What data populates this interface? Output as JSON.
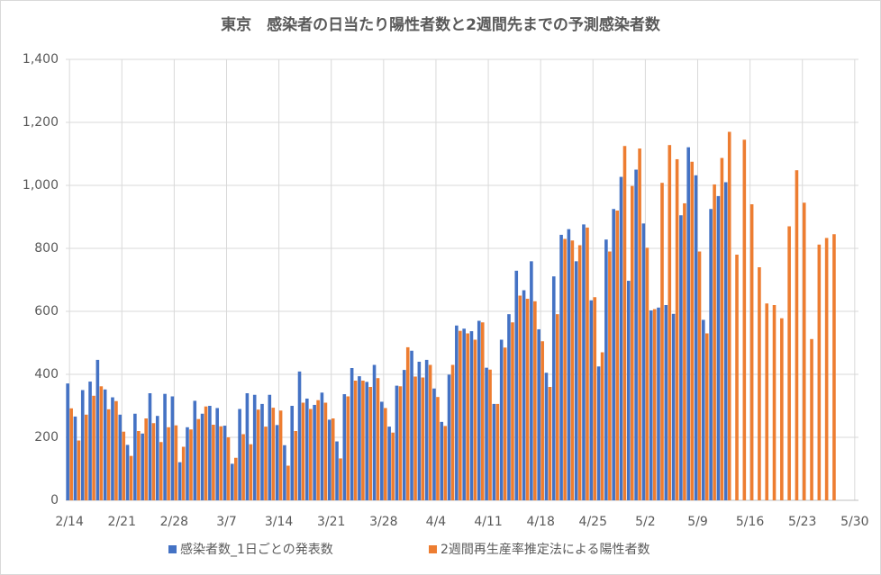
{
  "chart_data": {
    "type": "bar",
    "title": "東京　感染者の日当たり陽性者数と2週間先までの予測感染者数",
    "categories": [
      "2/14",
      null,
      null,
      null,
      null,
      null,
      null,
      "2/21",
      null,
      null,
      null,
      null,
      null,
      null,
      "2/28",
      null,
      null,
      null,
      null,
      null,
      null,
      "3/7",
      null,
      null,
      null,
      null,
      null,
      null,
      "3/14",
      null,
      null,
      null,
      null,
      null,
      null,
      "3/21",
      null,
      null,
      null,
      null,
      null,
      null,
      "3/28",
      null,
      null,
      null,
      null,
      null,
      null,
      "4/4",
      null,
      null,
      null,
      null,
      null,
      null,
      "4/11",
      null,
      null,
      null,
      null,
      null,
      null,
      "4/18",
      null,
      null,
      null,
      null,
      null,
      null,
      "4/25",
      null,
      null,
      null,
      null,
      null,
      null,
      "5/2",
      null,
      null,
      null,
      null,
      null,
      null,
      "5/9",
      null,
      null,
      null,
      null,
      null,
      null,
      "5/16",
      null,
      null,
      null,
      null,
      null,
      null,
      "5/23",
      null,
      null,
      null,
      null,
      null,
      null,
      "5/30"
    ],
    "series": [
      {
        "name": "感染者数_1日ごとの発表数",
        "color": "#4472c4",
        "values": [
          371,
          266,
          350,
          377,
          446,
          352,
          327,
          272,
          176,
          275,
          212,
          340,
          268,
          338,
          330,
          121,
          232,
          316,
          275,
          300,
          293,
          237,
          116,
          290,
          340,
          335,
          306,
          335,
          239,
          175,
          300,
          409,
          323,
          303,
          342,
          256,
          187,
          337,
          420,
          394,
          376,
          430,
          313,
          234,
          364,
          414,
          475,
          440,
          446,
          355,
          249,
          399,
          555,
          545,
          537,
          570,
          421,
          306,
          510,
          591,
          729,
          667,
          759,
          543,
          405,
          711,
          843,
          861,
          759,
          876,
          635,
          425,
          828,
          925,
          1027,
          697,
          1050,
          879,
          603,
          612,
          620,
          592,
          905,
          1121,
          1032,
          573,
          925,
          966,
          1010,
          null,
          null,
          null,
          null,
          null,
          null,
          null,
          null,
          null,
          null,
          null,
          null,
          null,
          null,
          null,
          null,
          null
        ]
      },
      {
        "name": "2週間再生産率推定法による陽性者数",
        "color": "#ed7d31",
        "values": [
          292,
          190,
          272,
          332,
          362,
          289,
          315,
          218,
          141,
          220,
          260,
          245,
          185,
          232,
          238,
          170,
          225,
          258,
          298,
          240,
          235,
          200,
          135,
          210,
          178,
          288,
          234,
          294,
          285,
          110,
          220,
          310,
          290,
          318,
          310,
          260,
          133,
          330,
          380,
          380,
          360,
          388,
          293,
          215,
          362,
          486,
          393,
          390,
          430,
          328,
          236,
          430,
          538,
          530,
          510,
          565,
          415,
          306,
          485,
          565,
          650,
          640,
          632,
          505,
          360,
          591,
          830,
          825,
          810,
          866,
          645,
          470,
          790,
          920,
          1125,
          998,
          1117,
          802,
          607,
          1008,
          1128,
          1083,
          943,
          1075,
          790,
          530,
          1003,
          1087,
          1170,
          780,
          1145,
          940,
          740,
          625,
          620,
          578,
          870,
          1048,
          945,
          512,
          812,
          833,
          845,
          null,
          null,
          null
        ]
      }
    ],
    "ylim": [
      0,
      1400
    ],
    "yticks": [
      0,
      200,
      400,
      600,
      800,
      {
        "value": 1000,
        "label": "1,000"
      },
      {
        "value": 1200,
        "label": "1,200"
      },
      {
        "value": 1400,
        "label": "1,400"
      }
    ],
    "grid": true
  }
}
